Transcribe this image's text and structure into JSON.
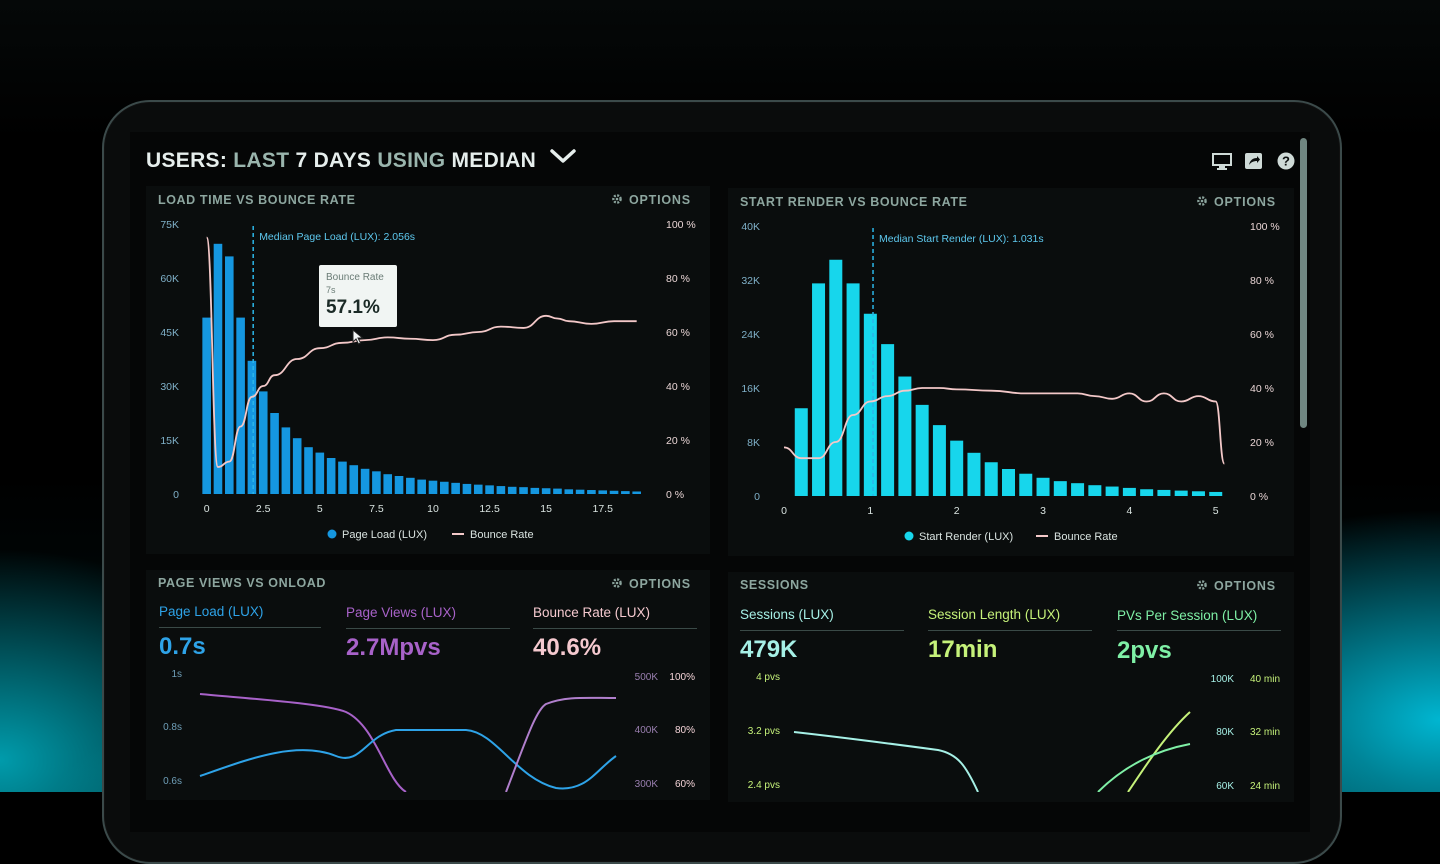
{
  "header": {
    "prefix": "USERS:",
    "period_word": "LAST",
    "period_num": "7 DAYS",
    "using": "USING",
    "method": "MEDIAN",
    "icons": [
      "monitor-icon",
      "share-icon",
      "help-icon"
    ]
  },
  "options_label": "OPTIONS",
  "panels": {
    "load": {
      "title": "LOAD TIME VS BOUNCE RATE",
      "median_label": "Median Page Load (LUX): 2.056s",
      "legend": [
        "Page Load (LUX)",
        "Bounce Rate"
      ],
      "tooltip": {
        "title": "Bounce Rate",
        "sub": "7s",
        "value": "57.1%"
      }
    },
    "render": {
      "title": "START RENDER VS BOUNCE RATE",
      "median_label": "Median Start Render (LUX): 1.031s",
      "legend": [
        "Start Render (LUX)",
        "Bounce Rate"
      ]
    },
    "pageviews": {
      "title": "PAGE VIEWS VS ONLOAD",
      "metrics": [
        {
          "label": "Page Load (LUX)",
          "value": "0.7s"
        },
        {
          "label": "Page Views (LUX)",
          "value": "2.7Mpvs"
        },
        {
          "label": "Bounce Rate (LUX)",
          "value": "40.6%"
        }
      ],
      "left_ticks": [
        "1s",
        "0.8s",
        "0.6s"
      ],
      "right_ticks_a": [
        "500K",
        "400K",
        "300K"
      ],
      "right_ticks_b": [
        "100%",
        "80%",
        "60%"
      ]
    },
    "sessions": {
      "title": "SESSIONS",
      "metrics": [
        {
          "label": "Sessions (LUX)",
          "value": "479K"
        },
        {
          "label": "Session Length (LUX)",
          "value": "17min"
        },
        {
          "label": "PVs Per Session (LUX)",
          "value": "2pvs"
        }
      ],
      "left_ticks": [
        "4 pvs",
        "3.2 pvs",
        "2.4 pvs"
      ],
      "right_ticks_a": [
        "100K",
        "80K",
        "60K"
      ],
      "right_ticks_b": [
        "40 min",
        "32 min",
        "24 min"
      ]
    }
  },
  "colors": {
    "bar_blue": "#1597e0",
    "bar_cyan": "#17d6ec",
    "bounce_line": "#f3c8c8",
    "median_line": "#2bb6e8",
    "metric_blue": "#2ea3e8",
    "metric_purple": "#a862c9",
    "metric_pink": "#f5c9cf",
    "metric_cyan": "#a6f0e6",
    "metric_lime": "#c6f27a",
    "metric_mint": "#7ff0a6"
  },
  "chart_data": [
    {
      "type": "bar",
      "title": "LOAD TIME VS BOUNCE RATE",
      "x_ticks": [
        "0",
        "2.5",
        "5",
        "7.5",
        "10",
        "12.5",
        "15",
        "17.5"
      ],
      "y_ticks": [
        "0",
        "15K",
        "30K",
        "45K",
        "60K",
        "75K"
      ],
      "y2_ticks": [
        "0 %",
        "20 %",
        "40 %",
        "60 %",
        "80 %",
        "100 %"
      ],
      "ylim": [
        0,
        75000
      ],
      "y2lim": [
        0,
        100
      ],
      "xlim": [
        -0.25,
        19.5
      ],
      "median_x": 2.056,
      "series": [
        {
          "name": "Page Load (LUX)",
          "x": [
            0,
            0.5,
            1,
            1.5,
            2,
            2.5,
            3,
            3.5,
            4,
            4.5,
            5,
            5.5,
            6,
            6.5,
            7,
            7.5,
            8,
            8.5,
            9,
            9.5,
            10,
            10.5,
            11,
            11.5,
            12,
            12.5,
            13,
            13.5,
            14,
            14.5,
            15,
            15.5,
            16,
            16.5,
            17,
            17.5,
            18,
            18.5,
            19
          ],
          "values": [
            49000,
            69500,
            66000,
            49000,
            37000,
            28500,
            22500,
            18500,
            15500,
            13000,
            11500,
            10000,
            9000,
            8000,
            7000,
            6300,
            5500,
            5000,
            4500,
            4000,
            3700,
            3400,
            3100,
            2800,
            2600,
            2400,
            2200,
            2000,
            1900,
            1700,
            1600,
            1500,
            1300,
            1200,
            1100,
            1000,
            900,
            800,
            700
          ]
        },
        {
          "name": "Bounce Rate",
          "x": [
            0,
            0.5,
            1,
            1.5,
            2,
            2.5,
            3,
            4,
            5,
            6,
            7,
            8,
            9,
            10,
            11,
            12,
            13,
            14,
            15,
            15.5,
            16,
            17,
            18,
            19
          ],
          "values": [
            95,
            10,
            12,
            25,
            36,
            40,
            44,
            50,
            54,
            56,
            57,
            58,
            57.5,
            57,
            59,
            60,
            62,
            61.5,
            66,
            65,
            64,
            63,
            64,
            64
          ]
        }
      ]
    },
    {
      "type": "bar",
      "title": "START RENDER VS BOUNCE RATE",
      "x_ticks": [
        "0",
        "1",
        "2",
        "3",
        "4",
        "5"
      ],
      "y_ticks": [
        "0",
        "8K",
        "16K",
        "24K",
        "32K",
        "40K"
      ],
      "y2_ticks": [
        "0 %",
        "20 %",
        "40 %",
        "60 %",
        "80 %",
        "100 %"
      ],
      "ylim": [
        0,
        40000
      ],
      "y2lim": [
        0,
        100
      ],
      "xlim": [
        0,
        5.2
      ],
      "median_x": 1.031,
      "series": [
        {
          "name": "Start Render (LUX)",
          "x": [
            0.2,
            0.4,
            0.6,
            0.8,
            1.0,
            1.2,
            1.4,
            1.6,
            1.8,
            2.0,
            2.2,
            2.4,
            2.6,
            2.8,
            3.0,
            3.2,
            3.4,
            3.6,
            3.8,
            4.0,
            4.2,
            4.4,
            4.6,
            4.8,
            5.0
          ],
          "values": [
            13000,
            31500,
            35000,
            31500,
            27000,
            22500,
            17700,
            13500,
            10500,
            8200,
            6400,
            5000,
            4000,
            3300,
            2700,
            2200,
            1900,
            1600,
            1400,
            1200,
            1000,
            900,
            800,
            700,
            600
          ]
        },
        {
          "name": "Bounce Rate",
          "x": [
            0,
            0.2,
            0.4,
            0.6,
            0.8,
            1.0,
            1.2,
            1.4,
            1.6,
            1.8,
            2.0,
            2.4,
            2.8,
            3.0,
            3.4,
            3.6,
            3.8,
            4.0,
            4.2,
            4.4,
            4.6,
            4.8,
            5.0,
            5.1
          ],
          "values": [
            18,
            14,
            14,
            20,
            30,
            35,
            37,
            39,
            40,
            40,
            39.5,
            39,
            38,
            38,
            38,
            37,
            36,
            38,
            35,
            38,
            35,
            37,
            35,
            12
          ]
        }
      ]
    }
  ]
}
